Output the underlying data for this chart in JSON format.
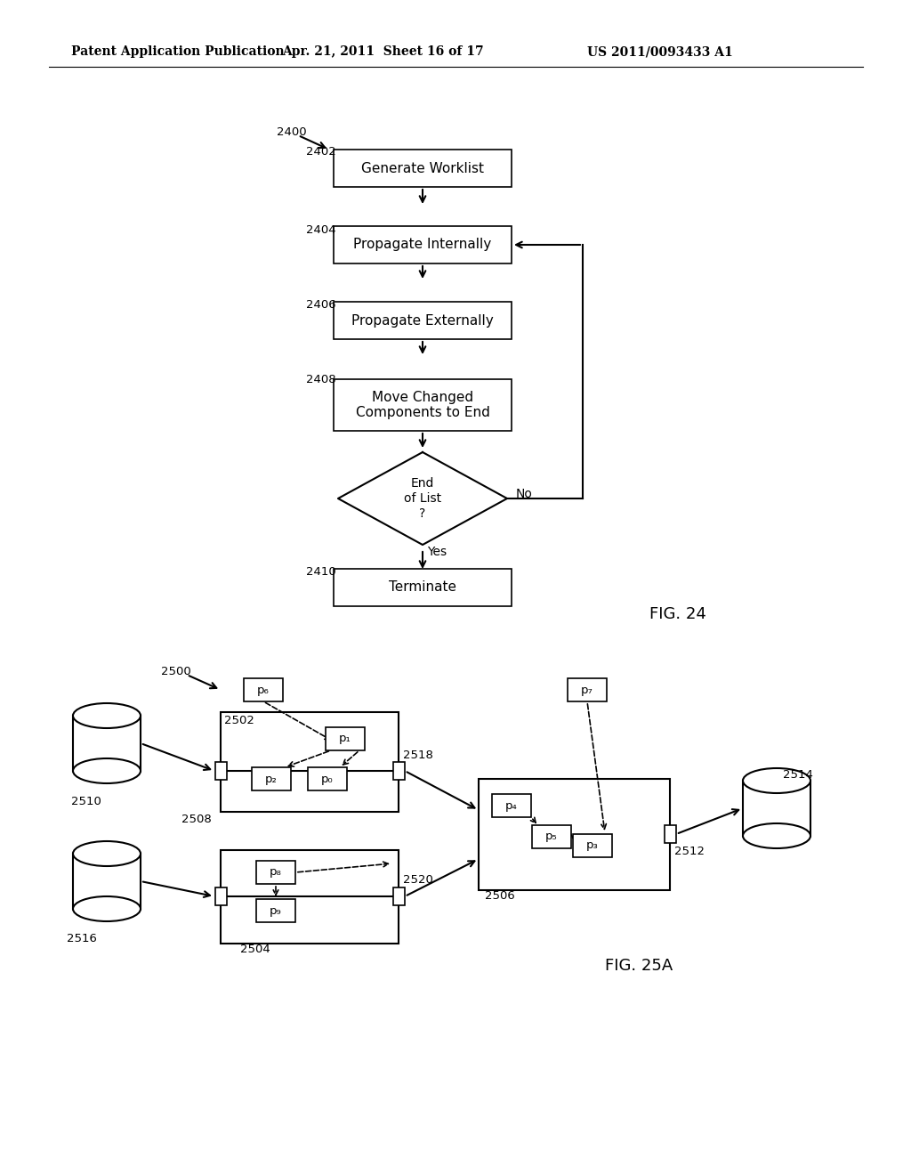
{
  "bg_color": "#ffffff",
  "header_left": "Patent Application Publication",
  "header_center": "Apr. 21, 2011  Sheet 16 of 17",
  "header_right": "US 2011/0093433 A1",
  "fig24_label": "FIG. 24",
  "fig25_label": "FIG. 25A"
}
